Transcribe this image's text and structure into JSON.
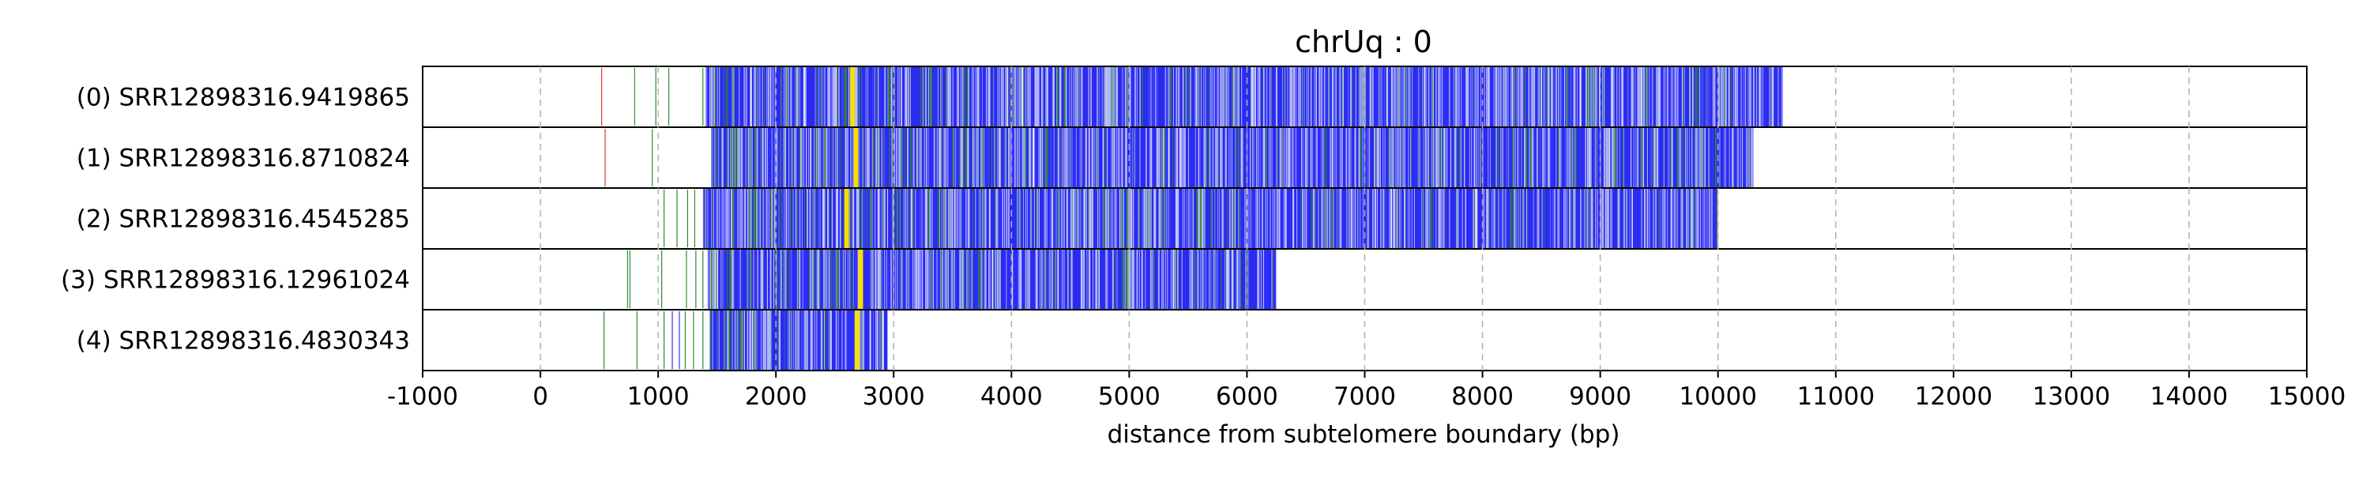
{
  "chart_data": {
    "type": "bar",
    "title": "chrUq : 0",
    "xlabel": "distance from subtelomere boundary (bp)",
    "ylabel": "",
    "xlim": [
      -1000,
      15000
    ],
    "x_ticks": [
      -1000,
      0,
      1000,
      2000,
      3000,
      4000,
      5000,
      6000,
      7000,
      8000,
      9000,
      10000,
      11000,
      12000,
      13000,
      14000,
      15000
    ],
    "x_tick_labels": [
      "-1000",
      "0",
      "1000",
      "2000",
      "3000",
      "4000",
      "5000",
      "6000",
      "7000",
      "8000",
      "9000",
      "10000",
      "11000",
      "12000",
      "13000",
      "14000",
      "15000"
    ],
    "grid": "x-dashed",
    "reads": [
      {
        "label": "(0) SRR12898316.9419865",
        "dense_start": 1400,
        "end": 10550,
        "yellow": 2650,
        "sparse": [
          [
            520,
            "red"
          ],
          [
            800,
            "green"
          ],
          [
            980,
            "green"
          ],
          [
            1090,
            "green"
          ],
          [
            1380,
            "green"
          ]
        ]
      },
      {
        "label": "(1) SRR12898316.8710824",
        "dense_start": 1450,
        "end": 10300,
        "yellow": 2680,
        "sparse": [
          [
            550,
            "red"
          ],
          [
            950,
            "green"
          ]
        ]
      },
      {
        "label": "(2) SRR12898316.4545285",
        "dense_start": 1380,
        "end": 10000,
        "yellow": 2600,
        "sparse": [
          [
            1050,
            "green"
          ],
          [
            1160,
            "green"
          ],
          [
            1250,
            "green"
          ],
          [
            1310,
            "green"
          ]
        ]
      },
      {
        "label": "(3) SRR12898316.12961024",
        "dense_start": 1420,
        "end": 6250,
        "yellow": 2720,
        "sparse": [
          [
            740,
            "green"
          ],
          [
            760,
            "green"
          ],
          [
            1030,
            "green"
          ],
          [
            1240,
            "green"
          ],
          [
            1320,
            "green"
          ],
          [
            1380,
            "green"
          ]
        ]
      },
      {
        "label": "(4) SRR12898316.4830343",
        "dense_start": 1440,
        "end": 2950,
        "yellow": 2690,
        "sparse": [
          [
            540,
            "green"
          ],
          [
            820,
            "green"
          ],
          [
            1050,
            "green"
          ],
          [
            1120,
            "blue"
          ],
          [
            1180,
            "blue"
          ],
          [
            1230,
            "green"
          ],
          [
            1300,
            "green"
          ],
          [
            1380,
            "green"
          ]
        ]
      }
    ],
    "colors": {
      "dense": "#2b2bf0",
      "blue": "#3030ff",
      "green": "#2e8b2e",
      "light": "#c8c8ff",
      "teal": "#7fb3b3",
      "red": "#e03030",
      "yellow": "#f5e000",
      "grid": "#b0b0b0",
      "frame": "#000000"
    }
  }
}
